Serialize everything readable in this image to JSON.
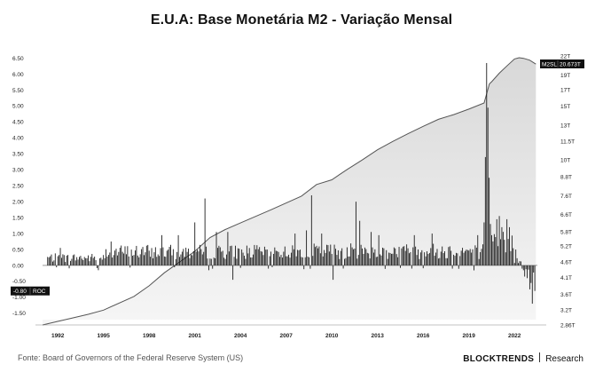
{
  "title": "E.U.A: Base Monetária M2 - Variação Mensal",
  "footer": {
    "source": "Fonte: Board of Governors of the Federal Reserve System (US)",
    "brand": "BLOCKTRENDS",
    "brand_suffix": "Research"
  },
  "colors": {
    "bars": "#1a1a1a",
    "m2_line": "#555555",
    "m2_fill": "#e8e8e8",
    "label_box": "#111111"
  },
  "chart_data": {
    "type": "bar",
    "title": "E.U.A: Base Monetária M2 - Variação Mensal",
    "x_range": [
      1991.0,
      2023.5
    ],
    "x_ticks": [
      "1992",
      "1995",
      "1998",
      "2001",
      "2004",
      "2007",
      "2010",
      "2013",
      "2016",
      "2019",
      "2022"
    ],
    "left_axis": {
      "ylim": [
        -1.7,
        6.6
      ],
      "ticks": [
        "6.50",
        "6.00",
        "5.50",
        "5.00",
        "4.50",
        "4.00",
        "3.50",
        "3.00",
        "2.50",
        "2.00",
        "1.50",
        "1.00",
        "0.50",
        "0.00",
        "-0.50",
        "-1.00",
        "-1.50"
      ]
    },
    "right_axis": {
      "scale": "log",
      "ticks": [
        "22T",
        "20.673T",
        "19T",
        "17T",
        "15T",
        "13T",
        "11.5T",
        "10T",
        "8.8T",
        "7.6T",
        "6.6T",
        "5.8T",
        "5.2T",
        "4.6T",
        "4.1T",
        "3.6T",
        "3.2T",
        "2.86T"
      ],
      "tick_values": [
        22,
        19,
        17,
        15,
        13,
        11.5,
        10,
        8.8,
        7.6,
        6.6,
        5.8,
        5.2,
        4.6,
        4.1,
        3.6,
        3.2,
        2.86
      ]
    },
    "series": [
      {
        "name": "ROC",
        "kind": "bar",
        "last_value_label": "-0.80",
        "spikes": [
          {
            "x": 1992.2,
            "y": 0.55
          },
          {
            "x": 1994.7,
            "y": -0.15
          },
          {
            "x": 1995.5,
            "y": 0.75
          },
          {
            "x": 1998.8,
            "y": 0.95
          },
          {
            "x": 1999.9,
            "y": 0.95
          },
          {
            "x": 2001.0,
            "y": 1.35
          },
          {
            "x": 2001.7,
            "y": 2.1
          },
          {
            "x": 2001.9,
            "y": -0.15
          },
          {
            "x": 2002.4,
            "y": 1.05
          },
          {
            "x": 2003.2,
            "y": 1.05
          },
          {
            "x": 2003.5,
            "y": -0.45
          },
          {
            "x": 2005.8,
            "y": -0.1
          },
          {
            "x": 2007.6,
            "y": 1.0
          },
          {
            "x": 2008.3,
            "y": 1.1
          },
          {
            "x": 2008.7,
            "y": 2.2
          },
          {
            "x": 2009.3,
            "y": 1.0
          },
          {
            "x": 2010.1,
            "y": -0.45
          },
          {
            "x": 2011.6,
            "y": 2.0
          },
          {
            "x": 2011.8,
            "y": 1.4
          },
          {
            "x": 2012.6,
            "y": 1.05
          },
          {
            "x": 2013.1,
            "y": 0.95
          },
          {
            "x": 2015.4,
            "y": 0.95
          },
          {
            "x": 2016.6,
            "y": 1.0
          },
          {
            "x": 2017.9,
            "y": -0.1
          },
          {
            "x": 2019.6,
            "y": 0.95
          },
          {
            "x": 2020.0,
            "y": 1.35
          },
          {
            "x": 2020.12,
            "y": 3.4
          },
          {
            "x": 2020.2,
            "y": 6.35
          },
          {
            "x": 2020.29,
            "y": 4.95
          },
          {
            "x": 2020.37,
            "y": 2.75
          },
          {
            "x": 2020.45,
            "y": 1.3
          },
          {
            "x": 2020.8,
            "y": 1.45
          },
          {
            "x": 2021.0,
            "y": 1.55
          },
          {
            "x": 2021.2,
            "y": 1.2
          },
          {
            "x": 2021.5,
            "y": 1.45
          },
          {
            "x": 2021.7,
            "y": 1.2
          },
          {
            "x": 2022.1,
            "y": 0.5
          },
          {
            "x": 2022.5,
            "y": -0.1
          },
          {
            "x": 2022.7,
            "y": -0.35
          },
          {
            "x": 2022.85,
            "y": -0.4
          },
          {
            "x": 2023.0,
            "y": -0.75
          },
          {
            "x": 2023.1,
            "y": -0.55
          },
          {
            "x": 2023.2,
            "y": -1.2
          },
          {
            "x": 2023.3,
            "y": -0.8
          }
        ]
      },
      {
        "name": "M2SL",
        "kind": "area",
        "axis": "right",
        "last_value_label": "20.673T",
        "points": [
          {
            "x": 1991.0,
            "y": 2.86
          },
          {
            "x": 1994.0,
            "y": 3.1
          },
          {
            "x": 1995.0,
            "y": 3.2
          },
          {
            "x": 1997.0,
            "y": 3.55
          },
          {
            "x": 1998.0,
            "y": 3.85
          },
          {
            "x": 1999.0,
            "y": 4.25
          },
          {
            "x": 2001.0,
            "y": 5.0
          },
          {
            "x": 2002.0,
            "y": 5.55
          },
          {
            "x": 2003.0,
            "y": 5.9
          },
          {
            "x": 2004.0,
            "y": 6.2
          },
          {
            "x": 2006.0,
            "y": 6.85
          },
          {
            "x": 2008.0,
            "y": 7.6
          },
          {
            "x": 2009.0,
            "y": 8.3
          },
          {
            "x": 2010.0,
            "y": 8.6
          },
          {
            "x": 2011.0,
            "y": 9.3
          },
          {
            "x": 2012.0,
            "y": 10.0
          },
          {
            "x": 2013.0,
            "y": 10.8
          },
          {
            "x": 2014.0,
            "y": 11.5
          },
          {
            "x": 2015.0,
            "y": 12.2
          },
          {
            "x": 2016.0,
            "y": 12.9
          },
          {
            "x": 2017.0,
            "y": 13.6
          },
          {
            "x": 2018.0,
            "y": 14.1
          },
          {
            "x": 2019.0,
            "y": 14.7
          },
          {
            "x": 2020.0,
            "y": 15.4
          },
          {
            "x": 2020.35,
            "y": 17.8
          },
          {
            "x": 2020.5,
            "y": 18.1
          },
          {
            "x": 2021.0,
            "y": 19.3
          },
          {
            "x": 2021.5,
            "y": 20.4
          },
          {
            "x": 2022.0,
            "y": 21.5
          },
          {
            "x": 2022.3,
            "y": 21.7
          },
          {
            "x": 2022.6,
            "y": 21.6
          },
          {
            "x": 2023.0,
            "y": 21.3
          },
          {
            "x": 2023.4,
            "y": 20.673
          }
        ]
      }
    ],
    "grid": false,
    "legend": "none"
  }
}
